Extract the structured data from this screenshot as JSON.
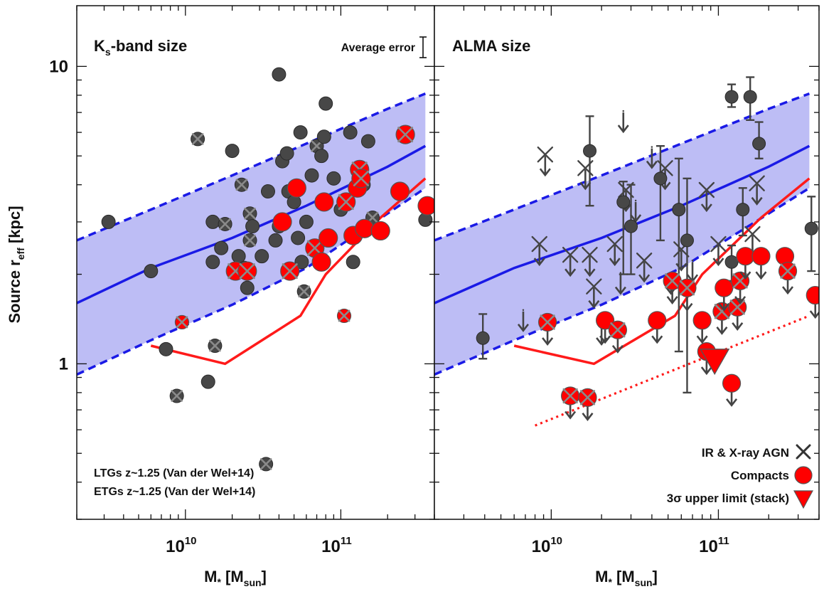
{
  "chart_data": [
    {
      "type": "scatter",
      "title": "Ks-band size",
      "title_main": "K",
      "title_sub": "s",
      "title_rest": "-band size",
      "annotation": "Average error",
      "xlabel": "M* [Msun]",
      "xlabel_main": "M",
      "xlabel_star": "*",
      "xlabel_bracket_open": " [M",
      "xlabel_sub": "sun",
      "xlabel_bracket_close": "]",
      "ylabel": "Source reff [kpc]",
      "ylabel_main": "Source r",
      "ylabel_sub": "eff",
      "ylabel_rest": " [kpc]",
      "x_scale": "log",
      "y_scale": "log",
      "xlim": [
        2000000000.0,
        400000000000.0
      ],
      "ylim": [
        0.3,
        16
      ],
      "x_ticks": [
        {
          "mantissa": "10",
          "exp": "10",
          "value": 10000000000.0
        },
        {
          "mantissa": "10",
          "exp": "11",
          "value": 100000000000.0
        }
      ],
      "y_ticks": [
        {
          "label": "10",
          "value": 10
        },
        {
          "label": "1",
          "value": 1
        }
      ],
      "legend": [
        {
          "label": "LTGs z~1.25 (Van der Wel+14)",
          "color": "#1a1ae6"
        },
        {
          "label": "ETGs z~1.25 (Van der Wel+14)",
          "color": "#ff1a1a"
        }
      ],
      "ltg_relation": {
        "x": [
          2000000000.0,
          6000000000.0,
          20000000000.0,
          60000000000.0,
          200000000000.0,
          350000000000.0
        ],
        "median": [
          1.6,
          2.1,
          2.65,
          3.4,
          4.6,
          5.4
        ],
        "upper": [
          2.6,
          3.3,
          4.3,
          5.5,
          7.2,
          8.1
        ],
        "lower": [
          0.92,
          1.2,
          1.58,
          2.1,
          3.2,
          3.9
        ]
      },
      "etg_relation": {
        "x": [
          6000000000.0,
          18000000000.0,
          55000000000.0,
          80000000000.0,
          180000000000.0,
          350000000000.0
        ],
        "y": [
          1.15,
          1.0,
          1.45,
          2.0,
          3.1,
          4.2
        ]
      },
      "galaxies": [
        {
          "x": 3200000000.0,
          "y": 3.0,
          "compact": false,
          "agn": false
        },
        {
          "x": 6000000000.0,
          "y": 2.05,
          "compact": false,
          "agn": false
        },
        {
          "x": 7500000000.0,
          "y": 1.12,
          "compact": false,
          "agn": false
        },
        {
          "x": 8800000000.0,
          "y": 0.78,
          "compact": false,
          "agn": true
        },
        {
          "x": 12000000000.0,
          "y": 5.7,
          "compact": false,
          "agn": true
        },
        {
          "x": 14000000000.0,
          "y": 0.87,
          "compact": false,
          "agn": false
        },
        {
          "x": 15000000000.0,
          "y": 3.0,
          "compact": false,
          "agn": false
        },
        {
          "x": 15000000000.0,
          "y": 2.2,
          "compact": false,
          "agn": false
        },
        {
          "x": 15500000000.0,
          "y": 1.15,
          "compact": false,
          "agn": true
        },
        {
          "x": 17000000000.0,
          "y": 2.45,
          "compact": false,
          "agn": false
        },
        {
          "x": 18000000000.0,
          "y": 2.95,
          "compact": false,
          "agn": true
        },
        {
          "x": 20000000000.0,
          "y": 5.2,
          "compact": false,
          "agn": false
        },
        {
          "x": 22000000000.0,
          "y": 2.3,
          "compact": false,
          "agn": false
        },
        {
          "x": 23000000000.0,
          "y": 4.0,
          "compact": false,
          "agn": true
        },
        {
          "x": 24000000000.0,
          "y": 2.1,
          "compact": false,
          "agn": false
        },
        {
          "x": 25000000000.0,
          "y": 1.8,
          "compact": false,
          "agn": false
        },
        {
          "x": 26000000000.0,
          "y": 2.6,
          "compact": false,
          "agn": true
        },
        {
          "x": 26000000000.0,
          "y": 3.2,
          "compact": false,
          "agn": true
        },
        {
          "x": 27000000000.0,
          "y": 2.9,
          "compact": false,
          "agn": false
        },
        {
          "x": 31000000000.0,
          "y": 2.3,
          "compact": false,
          "agn": false
        },
        {
          "x": 33000000000.0,
          "y": 0.46,
          "compact": false,
          "agn": true
        },
        {
          "x": 34000000000.0,
          "y": 3.8,
          "compact": false,
          "agn": false
        },
        {
          "x": 38000000000.0,
          "y": 2.6,
          "compact": false,
          "agn": false
        },
        {
          "x": 40000000000.0,
          "y": 9.4,
          "compact": false,
          "agn": false
        },
        {
          "x": 40000000000.0,
          "y": 2.9,
          "compact": false,
          "agn": false
        },
        {
          "x": 42000000000.0,
          "y": 4.8,
          "compact": false,
          "agn": false
        },
        {
          "x": 45000000000.0,
          "y": 5.1,
          "compact": false,
          "agn": false
        },
        {
          "x": 46000000000.0,
          "y": 3.8,
          "compact": false,
          "agn": false
        },
        {
          "x": 50000000000.0,
          "y": 3.5,
          "compact": false,
          "agn": false
        },
        {
          "x": 53000000000.0,
          "y": 2.65,
          "compact": false,
          "agn": false
        },
        {
          "x": 55000000000.0,
          "y": 6.0,
          "compact": false,
          "agn": false
        },
        {
          "x": 56000000000.0,
          "y": 2.2,
          "compact": false,
          "agn": false
        },
        {
          "x": 58000000000.0,
          "y": 1.75,
          "compact": false,
          "agn": true
        },
        {
          "x": 60000000000.0,
          "y": 3.0,
          "compact": false,
          "agn": false
        },
        {
          "x": 65000000000.0,
          "y": 4.3,
          "compact": false,
          "agn": false
        },
        {
          "x": 70000000000.0,
          "y": 5.4,
          "compact": false,
          "agn": true
        },
        {
          "x": 75000000000.0,
          "y": 5.0,
          "compact": false,
          "agn": false
        },
        {
          "x": 78000000000.0,
          "y": 5.8,
          "compact": false,
          "agn": false
        },
        {
          "x": 80000000000.0,
          "y": 7.5,
          "compact": false,
          "agn": false
        },
        {
          "x": 90000000000.0,
          "y": 4.2,
          "compact": false,
          "agn": false
        },
        {
          "x": 100000000000.0,
          "y": 3.3,
          "compact": false,
          "agn": false
        },
        {
          "x": 115000000000.0,
          "y": 6.0,
          "compact": false,
          "agn": false
        },
        {
          "x": 120000000000.0,
          "y": 2.2,
          "compact": false,
          "agn": false
        },
        {
          "x": 140000000000.0,
          "y": 4.0,
          "compact": false,
          "agn": false
        },
        {
          "x": 150000000000.0,
          "y": 5.6,
          "compact": false,
          "agn": false
        },
        {
          "x": 160000000000.0,
          "y": 3.1,
          "compact": false,
          "agn": true
        },
        {
          "x": 350000000000.0,
          "y": 3.05,
          "compact": false,
          "agn": false
        },
        {
          "x": 9500000000.0,
          "y": 1.38,
          "compact": true,
          "agn": true
        },
        {
          "x": 21000000000.0,
          "y": 2.05,
          "compact": true,
          "agn": true
        },
        {
          "x": 25000000000.0,
          "y": 2.05,
          "compact": true,
          "agn": true
        },
        {
          "x": 42000000000.0,
          "y": 3.0,
          "compact": true,
          "agn": false
        },
        {
          "x": 47000000000.0,
          "y": 2.05,
          "compact": true,
          "agn": true
        },
        {
          "x": 52000000000.0,
          "y": 3.9,
          "compact": true,
          "agn": false
        },
        {
          "x": 68000000000.0,
          "y": 2.45,
          "compact": true,
          "agn": true
        },
        {
          "x": 75000000000.0,
          "y": 2.2,
          "compact": true,
          "agn": false
        },
        {
          "x": 78000000000.0,
          "y": 3.5,
          "compact": true,
          "agn": false
        },
        {
          "x": 83000000000.0,
          "y": 2.65,
          "compact": true,
          "agn": false
        },
        {
          "x": 105000000000.0,
          "y": 1.45,
          "compact": true,
          "agn": true
        },
        {
          "x": 108000000000.0,
          "y": 3.5,
          "compact": true,
          "agn": true
        },
        {
          "x": 120000000000.0,
          "y": 2.7,
          "compact": true,
          "agn": false
        },
        {
          "x": 128000000000.0,
          "y": 3.9,
          "compact": true,
          "agn": false
        },
        {
          "x": 132000000000.0,
          "y": 4.5,
          "compact": true,
          "agn": true
        },
        {
          "x": 135000000000.0,
          "y": 4.2,
          "compact": true,
          "agn": true
        },
        {
          "x": 142000000000.0,
          "y": 2.85,
          "compact": true,
          "agn": false
        },
        {
          "x": 180000000000.0,
          "y": 2.8,
          "compact": true,
          "agn": false
        },
        {
          "x": 240000000000.0,
          "y": 3.8,
          "compact": true,
          "agn": false
        },
        {
          "x": 260000000000.0,
          "y": 5.9,
          "compact": true,
          "agn": true
        },
        {
          "x": 360000000000.0,
          "y": 3.4,
          "compact": true,
          "agn": false
        }
      ]
    },
    {
      "type": "scatter",
      "title": "ALMA size",
      "xlabel": "M* [Msun]",
      "xlabel_main": "M",
      "xlabel_star": "*",
      "xlabel_bracket_open": " [M",
      "xlabel_sub": "sun",
      "xlabel_bracket_close": "]",
      "x_scale": "log",
      "y_scale": "log",
      "xlim": [
        2000000000.0,
        400000000000.0
      ],
      "ylim": [
        0.3,
        16
      ],
      "x_ticks": [
        {
          "mantissa": "10",
          "exp": "10",
          "value": 10000000000.0
        },
        {
          "mantissa": "10",
          "exp": "11",
          "value": 100000000000.0
        }
      ],
      "legend": [
        {
          "label": "IR & X-ray AGN",
          "marker": "cross"
        },
        {
          "label": "Compacts",
          "marker": "red-circle"
        },
        {
          "label": "3σ upper limit (stack)",
          "marker": "red-triangle"
        }
      ],
      "ltg_relation": {
        "x": [
          2000000000.0,
          6000000000.0,
          20000000000.0,
          60000000000.0,
          200000000000.0,
          350000000000.0
        ],
        "median": [
          1.6,
          2.1,
          2.65,
          3.4,
          4.6,
          5.4
        ],
        "upper": [
          2.6,
          3.3,
          4.3,
          5.5,
          7.2,
          8.1
        ],
        "lower": [
          0.92,
          1.2,
          1.58,
          2.1,
          3.2,
          3.9
        ]
      },
      "etg_relation": {
        "x": [
          6000000000.0,
          18000000000.0,
          55000000000.0,
          80000000000.0,
          180000000000.0,
          350000000000.0
        ],
        "y": [
          1.15,
          1.0,
          1.45,
          2.0,
          3.1,
          4.2
        ]
      },
      "stack_limit_line": {
        "x": [
          8000000000.0,
          350000000000.0
        ],
        "y": [
          0.62,
          1.45
        ]
      },
      "upper_limit_stack": {
        "x": 95000000000.0,
        "y": 1.02
      },
      "measurements": [
        {
          "x": 3900000000.0,
          "y": 1.22,
          "err_lo": 0.18,
          "err_hi": 0.25
        },
        {
          "x": 17000000000.0,
          "y": 5.2,
          "err_lo": 1.8,
          "err_hi": 1.6
        },
        {
          "x": 27000000000.0,
          "y": 3.5,
          "err_lo": 1.5,
          "err_hi": 0.6
        },
        {
          "x": 30000000000.0,
          "y": 2.9,
          "err_lo": 0.9,
          "err_hi": 1.1
        },
        {
          "x": 45000000000.0,
          "y": 4.2,
          "err_lo": 1.6,
          "err_hi": 1.2
        },
        {
          "x": 58000000000.0,
          "y": 3.3,
          "err_lo": 2.2,
          "err_hi": 1.6
        },
        {
          "x": 65000000000.0,
          "y": 2.6,
          "err_lo": 1.8,
          "err_hi": 1.6
        },
        {
          "x": 120000000000.0,
          "y": 7.9,
          "err_lo": 0.6,
          "err_hi": 0.8
        },
        {
          "x": 155000000000.0,
          "y": 7.9,
          "err_lo": 1.3,
          "err_hi": 1.3
        },
        {
          "x": 175000000000.0,
          "y": 5.5,
          "err_lo": 0.6,
          "err_hi": 1.0
        },
        {
          "x": 120000000000.0,
          "y": 2.2,
          "err_lo": 0.3,
          "err_hi": 0.3
        },
        {
          "x": 140000000000.0,
          "y": 3.3,
          "err_lo": 0.6,
          "err_hi": 0.6
        },
        {
          "x": 360000000000.0,
          "y": 2.85,
          "err_lo": 0.8,
          "err_hi": 0.8
        }
      ],
      "upper_limits": [
        {
          "x": 6800000000.0,
          "y": 1.5,
          "compact": false,
          "agn": false
        },
        {
          "x": 8500000000.0,
          "y": 2.5,
          "compact": false,
          "agn": true
        },
        {
          "x": 9200000000.0,
          "y": 5.0,
          "compact": false,
          "agn": true
        },
        {
          "x": 13000000000.0,
          "y": 2.3,
          "compact": false,
          "agn": true
        },
        {
          "x": 16000000000.0,
          "y": 4.5,
          "compact": false,
          "agn": true
        },
        {
          "x": 17000000000.0,
          "y": 2.3,
          "compact": false,
          "agn": true
        },
        {
          "x": 18000000000.0,
          "y": 1.8,
          "compact": false,
          "agn": true
        },
        {
          "x": 20000000000.0,
          "y": 1.35,
          "compact": false,
          "agn": false
        },
        {
          "x": 24000000000.0,
          "y": 2.5,
          "compact": false,
          "agn": true
        },
        {
          "x": 26000000000.0,
          "y": 2.0,
          "compact": false,
          "agn": false
        },
        {
          "x": 27000000000.0,
          "y": 7.0,
          "compact": false,
          "agn": false
        },
        {
          "x": 28000000000.0,
          "y": 3.8,
          "compact": false,
          "agn": true
        },
        {
          "x": 32000000000.0,
          "y": 3.5,
          "compact": false,
          "agn": false
        },
        {
          "x": 36000000000.0,
          "y": 2.2,
          "compact": false,
          "agn": true
        },
        {
          "x": 40000000000.0,
          "y": 5.3,
          "compact": false,
          "agn": false
        },
        {
          "x": 48000000000.0,
          "y": 4.5,
          "compact": false,
          "agn": true
        },
        {
          "x": 52000000000.0,
          "y": 2.0,
          "compact": false,
          "agn": false
        },
        {
          "x": 60000000000.0,
          "y": 2.4,
          "compact": false,
          "agn": true
        },
        {
          "x": 70000000000.0,
          "y": 2.2,
          "compact": false,
          "agn": false
        },
        {
          "x": 85000000000.0,
          "y": 3.8,
          "compact": false,
          "agn": true
        },
        {
          "x": 100000000000.0,
          "y": 2.5,
          "compact": false,
          "agn": true
        },
        {
          "x": 160000000000.0,
          "y": 2.7,
          "compact": false,
          "agn": true
        },
        {
          "x": 170000000000.0,
          "y": 4.0,
          "compact": false,
          "agn": true
        },
        {
          "x": 9500000000.0,
          "y": 1.38,
          "compact": true,
          "agn": true
        },
        {
          "x": 13000000000.0,
          "y": 0.78,
          "compact": true,
          "agn": true
        },
        {
          "x": 16500000000.0,
          "y": 0.77,
          "compact": true,
          "agn": true
        },
        {
          "x": 21000000000.0,
          "y": 1.4,
          "compact": true,
          "agn": false
        },
        {
          "x": 25000000000.0,
          "y": 1.3,
          "compact": true,
          "agn": true
        },
        {
          "x": 43000000000.0,
          "y": 1.4,
          "compact": true,
          "agn": false
        },
        {
          "x": 53000000000.0,
          "y": 1.9,
          "compact": true,
          "agn": true
        },
        {
          "x": 65000000000.0,
          "y": 1.8,
          "compact": true,
          "agn": true
        },
        {
          "x": 80000000000.0,
          "y": 1.4,
          "compact": true,
          "agn": false
        },
        {
          "x": 85000000000.0,
          "y": 1.1,
          "compact": true,
          "agn": false
        },
        {
          "x": 105000000000.0,
          "y": 1.5,
          "compact": true,
          "agn": true
        },
        {
          "x": 108000000000.0,
          "y": 1.8,
          "compact": true,
          "agn": false
        },
        {
          "x": 120000000000.0,
          "y": 0.86,
          "compact": true,
          "agn": false
        },
        {
          "x": 130000000000.0,
          "y": 1.55,
          "compact": true,
          "agn": true
        },
        {
          "x": 135000000000.0,
          "y": 1.9,
          "compact": true,
          "agn": true
        },
        {
          "x": 145000000000.0,
          "y": 2.3,
          "compact": true,
          "agn": false
        },
        {
          "x": 180000000000.0,
          "y": 2.3,
          "compact": true,
          "agn": false
        },
        {
          "x": 250000000000.0,
          "y": 2.3,
          "compact": true,
          "agn": false
        },
        {
          "x": 260000000000.0,
          "y": 2.05,
          "compact": true,
          "agn": true
        },
        {
          "x": 380000000000.0,
          "y": 1.7,
          "compact": true,
          "agn": false
        }
      ]
    }
  ]
}
